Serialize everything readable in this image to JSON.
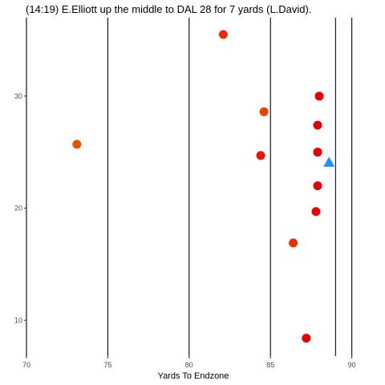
{
  "chart_data": {
    "type": "scatter",
    "title": "(14:19) E.Elliott up the middle to DAL 28 for 7 yards (L.David).",
    "xlabel": "Yards To Endzone",
    "ylabel": "",
    "xlim": [
      70,
      91.3
    ],
    "ylim": [
      6.8,
      37.0
    ],
    "grid": false,
    "x_ticks": [
      70,
      75,
      80,
      85,
      90
    ],
    "y_ticks": [
      10,
      20,
      30
    ],
    "vertical_lines": [
      {
        "x": 70,
        "color": "#000000"
      },
      {
        "x": 75,
        "color": "#000000"
      },
      {
        "x": 80,
        "color": "#000000"
      },
      {
        "x": 85,
        "color": "#000000"
      },
      {
        "x": 90,
        "color": "#000000"
      },
      {
        "x": 89.0,
        "color": "#00008b"
      }
    ],
    "points": [
      {
        "x": 82.1,
        "y": 35.5,
        "color": "#ee2c00",
        "shape": "circle"
      },
      {
        "x": 88.0,
        "y": 30.0,
        "color": "#e60000",
        "shape": "circle"
      },
      {
        "x": 84.6,
        "y": 28.6,
        "color": "#f04000",
        "shape": "circle"
      },
      {
        "x": 87.9,
        "y": 27.4,
        "color": "#e60000",
        "shape": "circle"
      },
      {
        "x": 73.1,
        "y": 25.7,
        "color": "#e65000",
        "shape": "circle"
      },
      {
        "x": 84.4,
        "y": 24.7,
        "color": "#e81400",
        "shape": "circle"
      },
      {
        "x": 87.9,
        "y": 25.0,
        "color": "#e60000",
        "shape": "circle"
      },
      {
        "x": 87.9,
        "y": 22.0,
        "color": "#e60000",
        "shape": "circle"
      },
      {
        "x": 87.8,
        "y": 19.7,
        "color": "#e60000",
        "shape": "circle"
      },
      {
        "x": 86.4,
        "y": 16.9,
        "color": "#e83000",
        "shape": "circle"
      },
      {
        "x": 87.2,
        "y": 8.4,
        "color": "#e60000",
        "shape": "circle"
      },
      {
        "x": 88.6,
        "y": 24.1,
        "color": "#1e90ff",
        "shape": "triangle"
      }
    ]
  }
}
